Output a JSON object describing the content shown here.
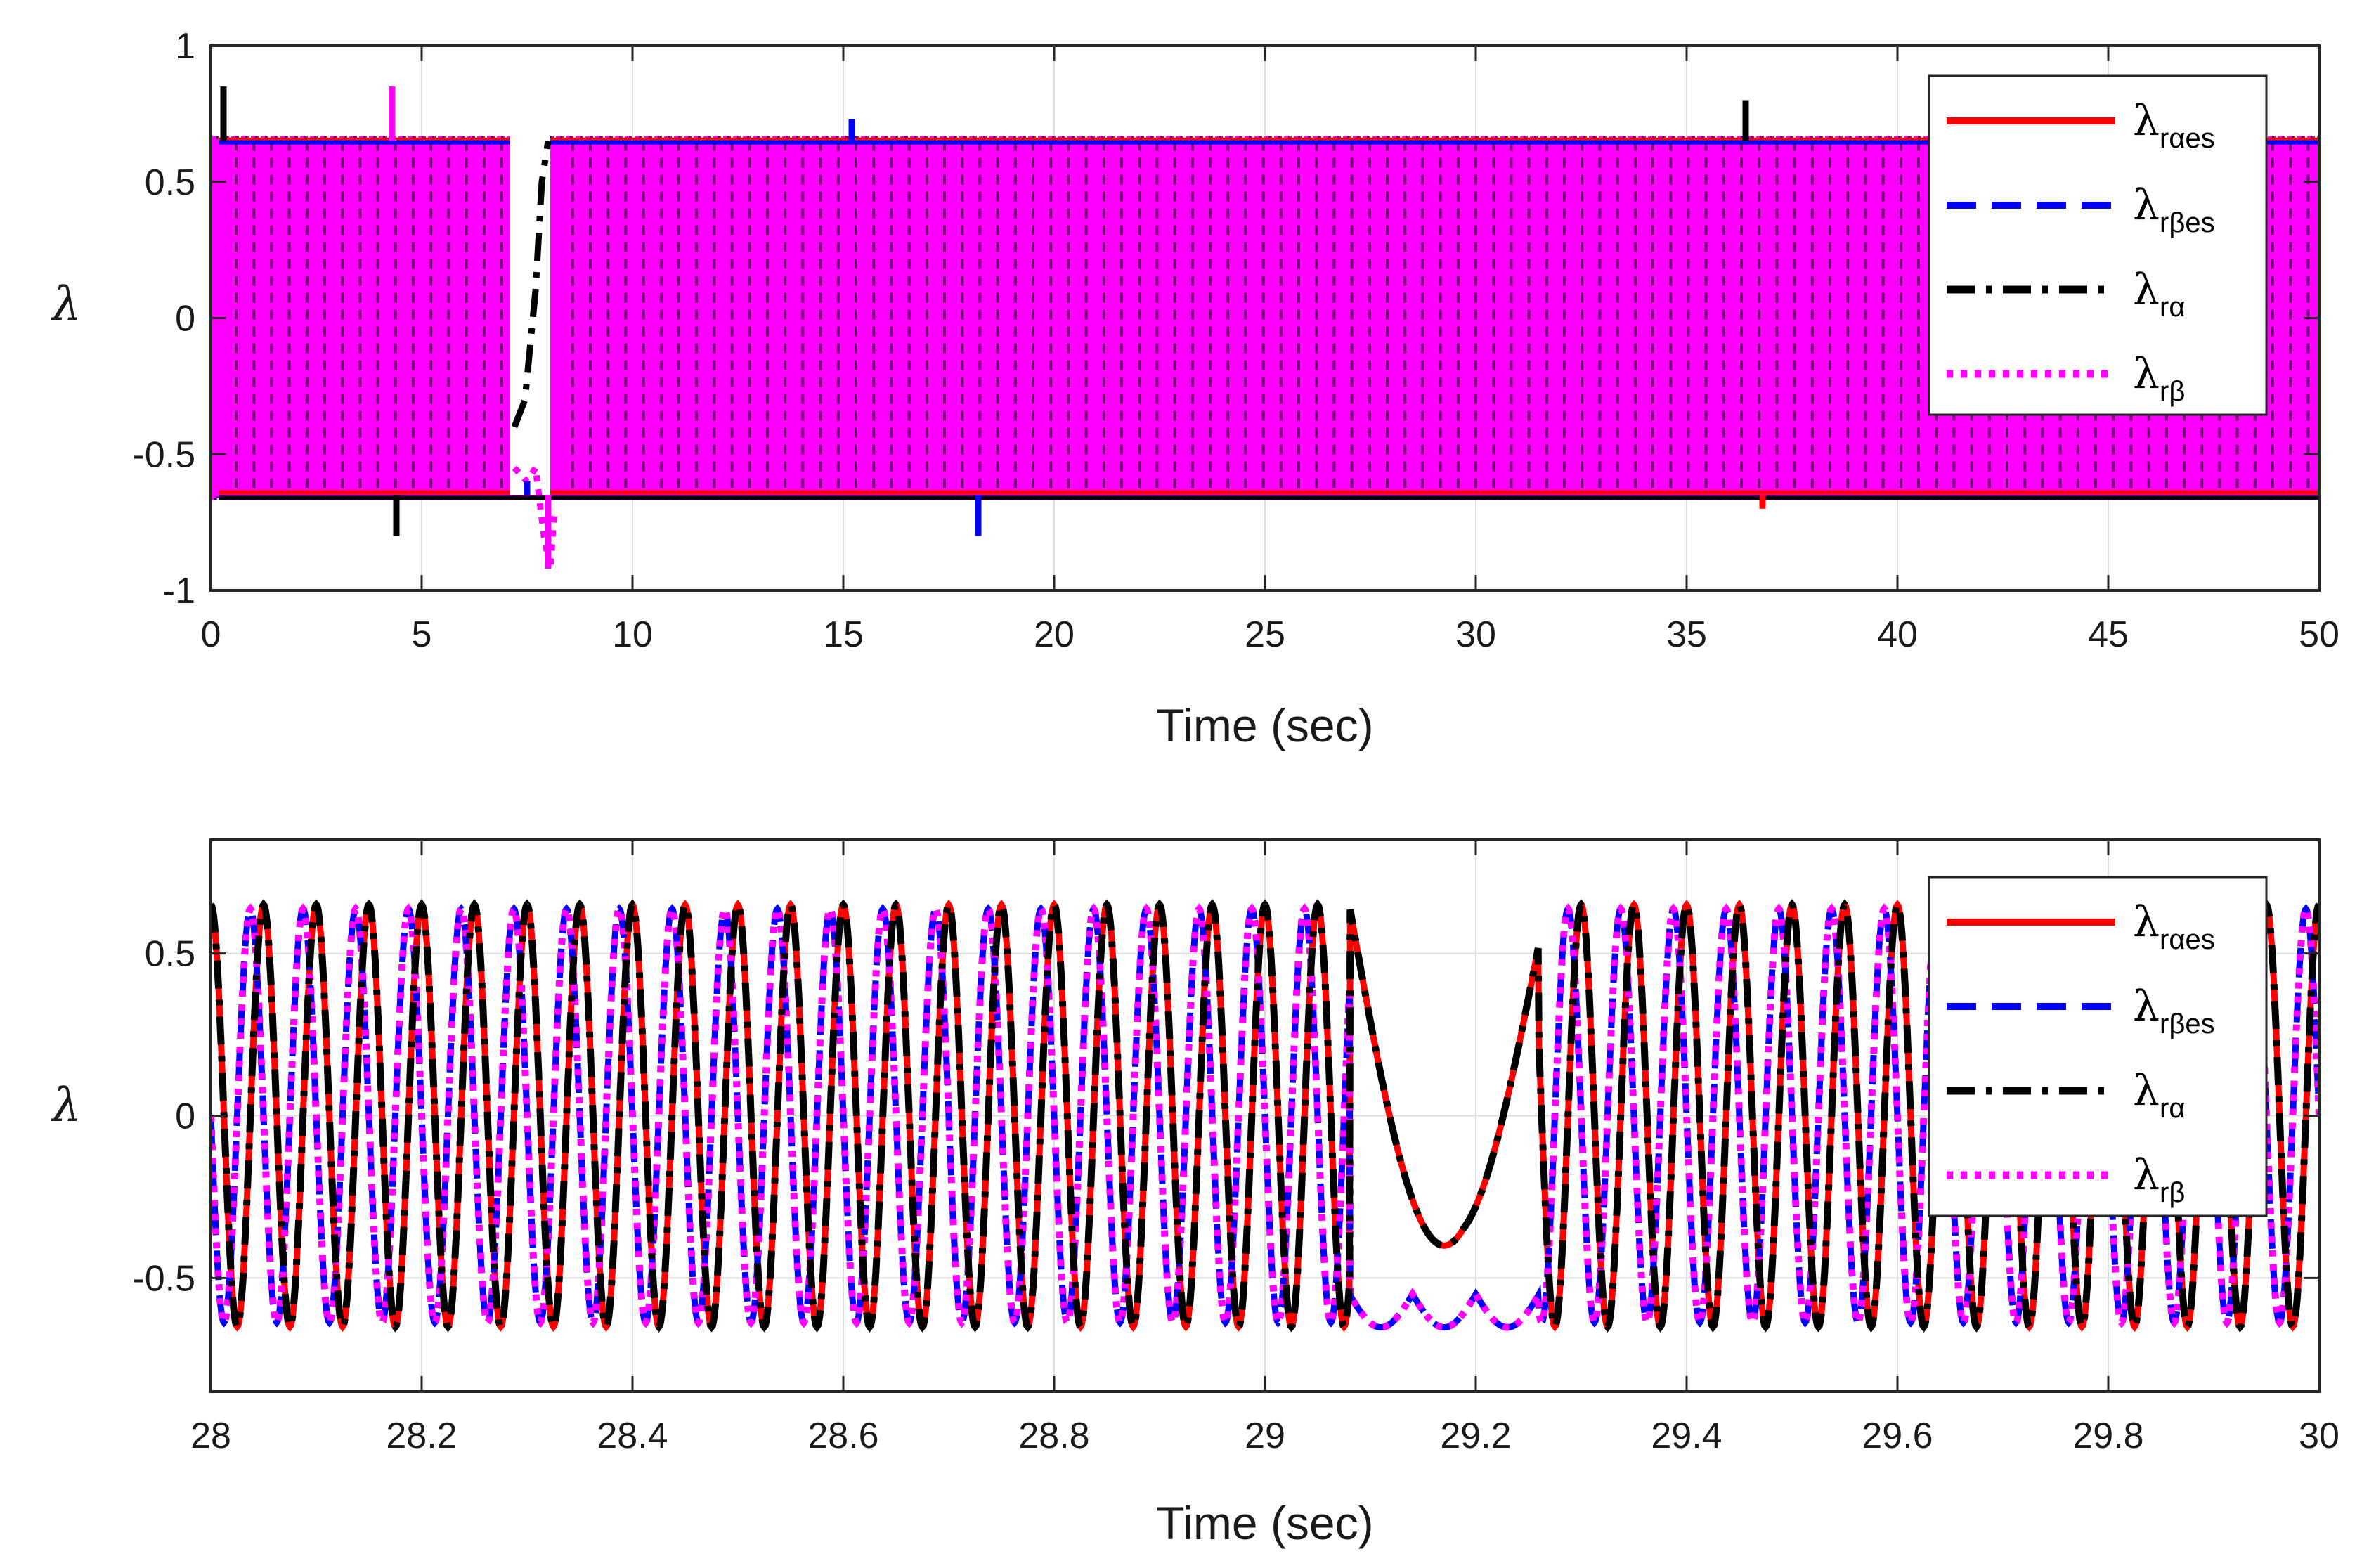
{
  "chart_data": [
    {
      "type": "line",
      "title": "",
      "xlabel": "Time (sec)",
      "ylabel": "λ",
      "xlim": [
        0,
        50
      ],
      "ylim": [
        -1,
        1
      ],
      "xticks": [
        0,
        5,
        10,
        15,
        20,
        25,
        30,
        35,
        40,
        45,
        50
      ],
      "xtick_labels": [
        "0",
        "5",
        "10",
        "15",
        "20",
        "25",
        "30",
        "35",
        "40",
        "45",
        "50"
      ],
      "yticks": [
        -1,
        -0.5,
        0,
        0.5,
        1
      ],
      "ytick_labels": [
        "-1",
        "-0.5",
        "0",
        "0.5",
        "1"
      ],
      "grid": true,
      "legend_position": "top-right",
      "envelope": {
        "upper": 0.65,
        "lower": -0.65
      },
      "features": [
        {
          "t": 0.3,
          "value": 0.85
        },
        {
          "t": 4.3,
          "value": 0.85
        },
        {
          "t": 4.4,
          "value": -0.8
        },
        {
          "t": 7.5,
          "value": -0.6
        },
        {
          "t": 8.0,
          "value": -0.92
        },
        {
          "t": 15.2,
          "value": 0.73
        },
        {
          "t": 18.2,
          "value": -0.8
        },
        {
          "t": 36.4,
          "value": 0.8
        },
        {
          "t": 36.8,
          "value": -0.7
        }
      ],
      "series": [
        {
          "name": "λ_rαes",
          "main": "λ",
          "sub": "rαes",
          "color": "#ff0000",
          "style": "solid"
        },
        {
          "name": "λ_rβes",
          "main": "λ",
          "sub": "rβes",
          "color": "#0000ff",
          "style": "dashed"
        },
        {
          "name": "λ_rα",
          "main": "λ",
          "sub": "rα",
          "color": "#000000",
          "style": "dashdot"
        },
        {
          "name": "λ_rβ",
          "main": "λ",
          "sub": "rβ",
          "color": "#ff00ff",
          "style": "dotted"
        }
      ]
    },
    {
      "type": "line",
      "title": "",
      "xlabel": "Time (sec)",
      "ylabel": "λ",
      "xlim": [
        28,
        30
      ],
      "ylim": [
        -0.85,
        0.85
      ],
      "xticks": [
        28,
        28.2,
        28.4,
        28.6,
        28.8,
        29,
        29.2,
        29.4,
        29.6,
        29.8,
        30
      ],
      "xtick_labels": [
        "28",
        "28.2",
        "28.4",
        "28.6",
        "28.8",
        "29",
        "29.2",
        "29.4",
        "29.6",
        "29.8",
        "30"
      ],
      "yticks": [
        -0.5,
        0,
        0.5
      ],
      "ytick_labels": [
        "-0.5",
        "0",
        "0.5"
      ],
      "grid": true,
      "legend_position": "top-right",
      "amplitude": 0.65,
      "frequency_hz": 20,
      "disturbance": {
        "t_start": 29.08,
        "t_end": 29.26,
        "alpha_min": -0.4,
        "beta_min": -0.62
      },
      "series": [
        {
          "name": "λ_rαes",
          "main": "λ",
          "sub": "rαes",
          "color": "#ff0000",
          "style": "solid"
        },
        {
          "name": "λ_rβes",
          "main": "λ",
          "sub": "rβes",
          "color": "#0000ff",
          "style": "dashed"
        },
        {
          "name": "λ_rα",
          "main": "λ",
          "sub": "rα",
          "color": "#000000",
          "style": "dashdot"
        },
        {
          "name": "λ_rβ",
          "main": "λ",
          "sub": "rβ",
          "color": "#ff00ff",
          "style": "dotted"
        }
      ]
    }
  ]
}
